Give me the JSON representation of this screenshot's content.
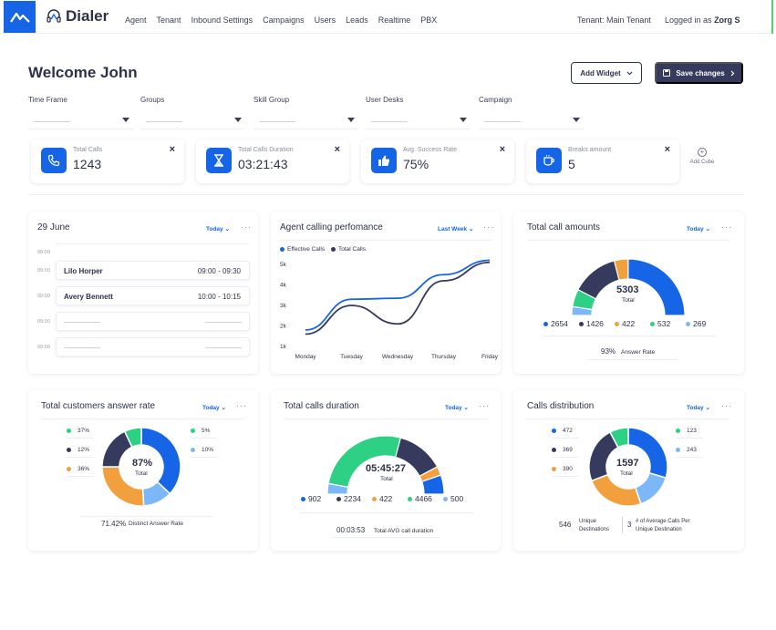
{
  "app": {
    "title": "Dialer"
  },
  "nav": {
    "items": [
      "Agent",
      "Tenant",
      "Inbound Settings",
      "Campaigns",
      "Users",
      "Leads",
      "Realtime",
      "PBX"
    ]
  },
  "header": {
    "tenant": "Tenant: Main Tenant",
    "logged_prefix": "Logged in as",
    "user": "Zorg S"
  },
  "page": {
    "welcome": "Welcome John",
    "add_widget": "Add Widget",
    "save_changes": "Save changes"
  },
  "filters": {
    "time_frame": "Time Frame",
    "groups": "Groups",
    "skill_group": "Skill Group",
    "user_desks": "User Desks",
    "campaign": "Campaign"
  },
  "cubes": [
    {
      "label": "Total Calls",
      "value": "1243",
      "icon": "phone-icon"
    },
    {
      "label": "Total Calls Duration",
      "value": "03:21:43",
      "icon": "hourglass-icon"
    },
    {
      "label": "Avg. Success Rate",
      "value": "75%",
      "icon": "thumbs-up-icon"
    },
    {
      "label": "Breaks amount",
      "value": "5",
      "icon": "coffee-icon"
    }
  ],
  "add_cube": "Add Cube",
  "close_label": "×",
  "dots_label": "···",
  "schedule": {
    "title": "29 June",
    "period": "Today",
    "hours": [
      "08:00",
      "09:00",
      "09:00",
      "09:00",
      "09:00"
    ],
    "entries": [
      {
        "name": "Lilo Horper",
        "time": "09:00 - 09:30"
      },
      {
        "name": "Avery Bennett",
        "time": "10:00 - 10:15"
      }
    ]
  },
  "performance": {
    "title": "Agent calling perfomance",
    "period": "Last Week",
    "legend": [
      "Effective Calls",
      "Total Calls"
    ],
    "chart_data": {
      "type": "line",
      "categories": [
        "Monday",
        "Tuesday",
        "Wednesday",
        "Thursday",
        "Friday"
      ],
      "y_ticks": [
        "1k",
        "2k",
        "3k",
        "4k",
        "5k"
      ],
      "ylim": [
        1000,
        5000
      ],
      "series": [
        {
          "name": "Effective Calls",
          "color": "#1565e6",
          "values": [
            1800,
            3300,
            3350,
            4500,
            5200
          ]
        },
        {
          "name": "Total Calls",
          "color": "#363a5d",
          "values": [
            1600,
            3000,
            2100,
            4200,
            5100
          ]
        }
      ]
    }
  },
  "total_amounts": {
    "title": "Total call amounts",
    "period": "Today",
    "center_value": "5303",
    "center_label": "Total",
    "values": [
      {
        "v": "2654",
        "c": "#1565e6"
      },
      {
        "v": "1426",
        "c": "#363a5d"
      },
      {
        "v": "422",
        "c": "#f2a03d"
      },
      {
        "v": "532",
        "c": "#2ed184"
      },
      {
        "v": "269",
        "c": "#7cb8f7"
      }
    ],
    "rate_value": "93%",
    "rate_label": "Answer Rate"
  },
  "answer_rate": {
    "title": "Total customers answer rate",
    "period": "Today",
    "center_value": "87%",
    "center_label": "Total",
    "left": [
      {
        "v": "37%",
        "c": "#2ed184"
      },
      {
        "v": "12%",
        "c": "#363a5d"
      },
      {
        "v": "36%",
        "c": "#f2a03d"
      }
    ],
    "right": [
      {
        "v": "5%",
        "c": "#2ed184"
      },
      {
        "v": "10%",
        "c": "#7cb8f7"
      }
    ],
    "foot_value": "71.42%",
    "foot_label": "Distinct Answer Rate"
  },
  "duration": {
    "title": "Total calls duration",
    "period": "Today",
    "center_value": "05:45:27",
    "center_label": "Total",
    "values": [
      {
        "v": "902",
        "c": "#1565e6"
      },
      {
        "v": "2234",
        "c": "#363a5d"
      },
      {
        "v": "422",
        "c": "#f2a03d"
      },
      {
        "v": "4466",
        "c": "#2ed184"
      },
      {
        "v": "500",
        "c": "#7cb8f7"
      }
    ],
    "foot_value": "00:03:53",
    "foot_label": "Total AVG call duration"
  },
  "distribution": {
    "title": "Calls distribution",
    "period": "Today",
    "center_value": "1597",
    "center_label": "Total",
    "left": [
      {
        "v": "472",
        "c": "#1565e6"
      },
      {
        "v": "369",
        "c": "#363a5d"
      },
      {
        "v": "390",
        "c": "#f2a03d"
      }
    ],
    "right": [
      {
        "v": "123",
        "c": "#2ed184"
      },
      {
        "v": "243",
        "c": "#7cb8f7"
      }
    ],
    "unique_value": "546",
    "unique_label": "Unique Destinations",
    "avg_value": "3",
    "avg_label": "# of Average Calls Per Unique Destination"
  }
}
